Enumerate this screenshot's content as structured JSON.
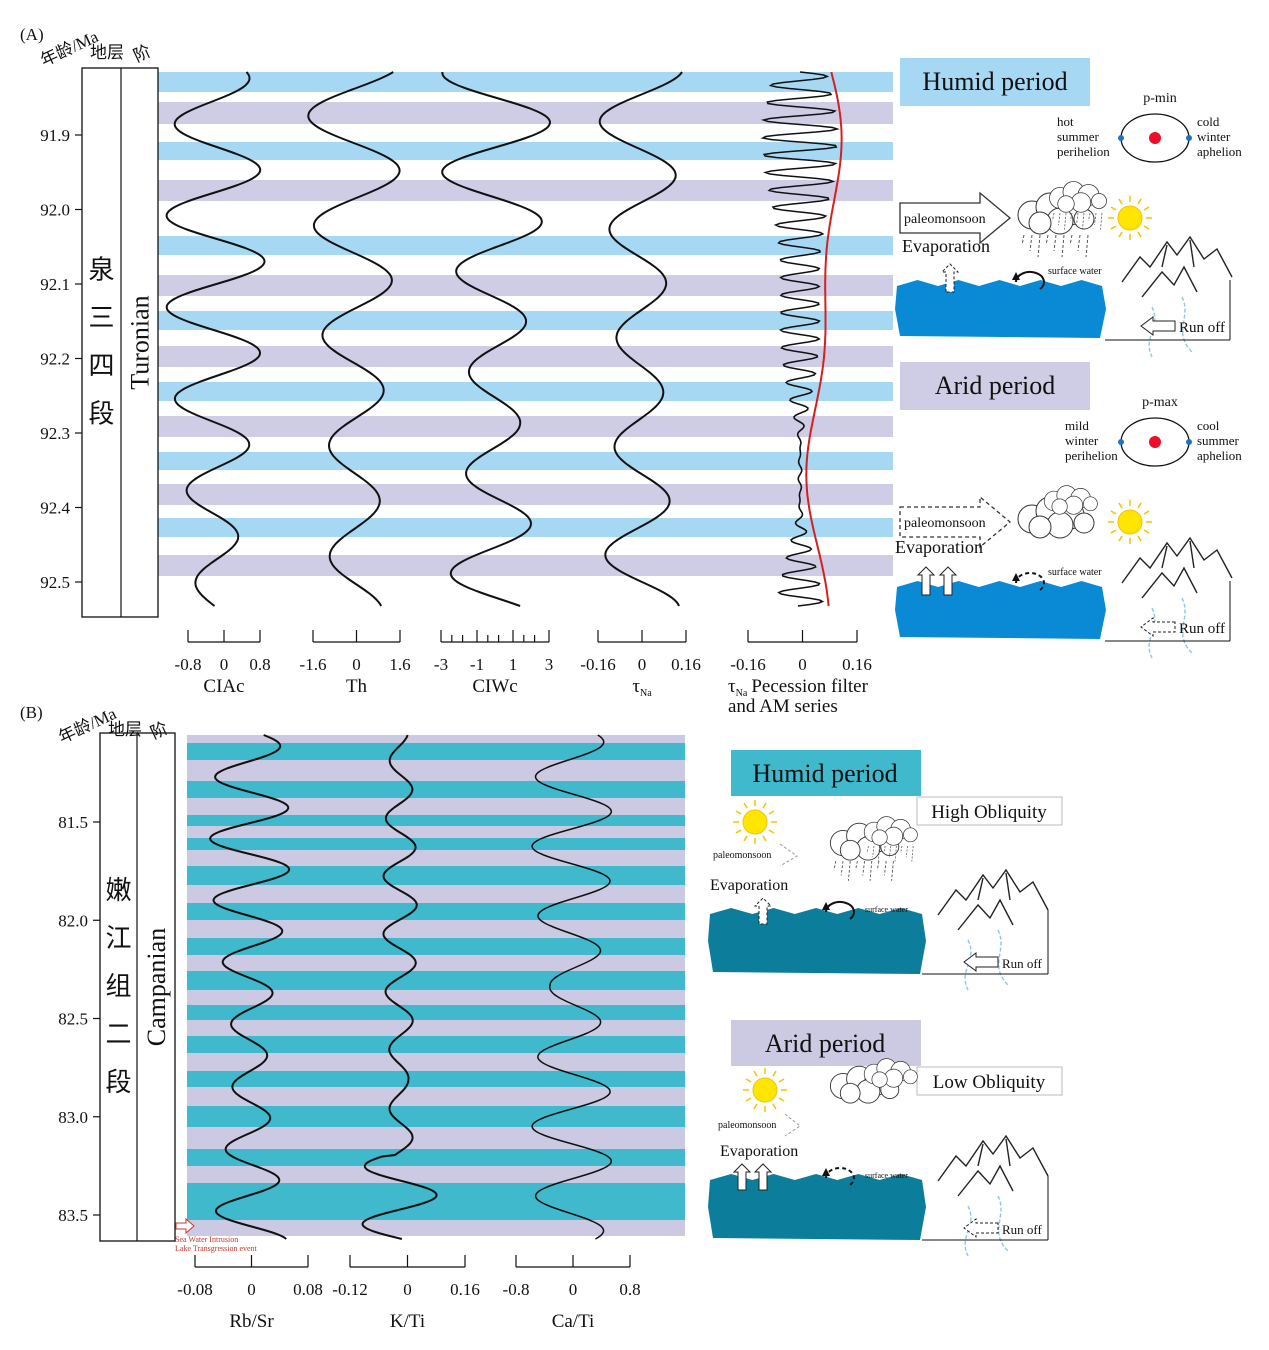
{
  "panel_a": {
    "label": "(A)",
    "age_header": "年龄/Ma",
    "formation_header": "地层",
    "stage_header": "阶",
    "formation": [
      "泉",
      "三",
      "四",
      "段"
    ],
    "stage": "Turonian",
    "ages": [
      "91.9",
      "92.0",
      "92.1",
      "92.2",
      "92.3",
      "92.4",
      "92.5"
    ],
    "proxies": [
      {
        "name": "CIAc",
        "ticks": [
          "-0.8",
          "0",
          "0.8"
        ]
      },
      {
        "name": "Th",
        "ticks": [
          "-1.6",
          "0",
          "1.6"
        ]
      },
      {
        "name": "CIWc",
        "ticks": [
          "-3",
          "-1",
          "1",
          "3"
        ]
      },
      {
        "name": "τ",
        "sub": "Na",
        "ticks": [
          "-0.16",
          "0",
          "0.16"
        ]
      },
      {
        "name": "τ",
        "sub": "Na",
        "rest": "Pecession filter",
        "line2": "and AM series",
        "ticks": [
          "-0.16",
          "0",
          "0.16"
        ]
      }
    ],
    "humid": {
      "title": "Humid period",
      "orbit": "p-min",
      "left": [
        "hot",
        "summer",
        "perihelion"
      ],
      "right": [
        "cold",
        "winter",
        "aphelion"
      ],
      "monsoon": "paleomonsoon",
      "evaporation": "Evaporation",
      "surface": "surface water",
      "runoff": "Run off"
    },
    "arid": {
      "title": "Arid period",
      "orbit": "p-max",
      "left": [
        "mild",
        "winter",
        "perihelion"
      ],
      "right": [
        "cool",
        "summer",
        "aphelion"
      ],
      "monsoon": "paleomonsoon",
      "evaporation": "Evaporation",
      "surface": "surface water",
      "runoff": "Run off"
    }
  },
  "panel_b": {
    "label": "(B)",
    "age_header": "年龄/Ma",
    "formation_header": "地层",
    "stage_header": "阶",
    "formation": [
      "嫩",
      "江",
      "组",
      "二",
      "段"
    ],
    "stage": "Campanian",
    "ages": [
      "81.5",
      "82.0",
      "82.5",
      "83.0",
      "83.5"
    ],
    "proxies": [
      {
        "name": "Rb/Sr",
        "ticks": [
          "-0.08",
          "0",
          "0.08"
        ]
      },
      {
        "name": "K/Ti",
        "ticks": [
          "-0.12",
          "0",
          "0.16"
        ]
      },
      {
        "name": "Ca/Ti",
        "ticks": [
          "-0.8",
          "0",
          "0.8"
        ]
      }
    ],
    "event": [
      "Sea Water Intrusion",
      "Lake Transgression event"
    ],
    "humid": {
      "title": "Humid period",
      "obliquity": "High Obliquity",
      "monsoon": "paleomonsoon",
      "evaporation": "Evaporation",
      "surface": "surface water",
      "runoff": "Run off"
    },
    "arid": {
      "title": "Arid period",
      "obliquity": "Low Obliquity",
      "monsoon": "paleomonsoon",
      "evaporation": "Evaporation",
      "surface": "surface water",
      "runoff": "Run off"
    }
  }
}
